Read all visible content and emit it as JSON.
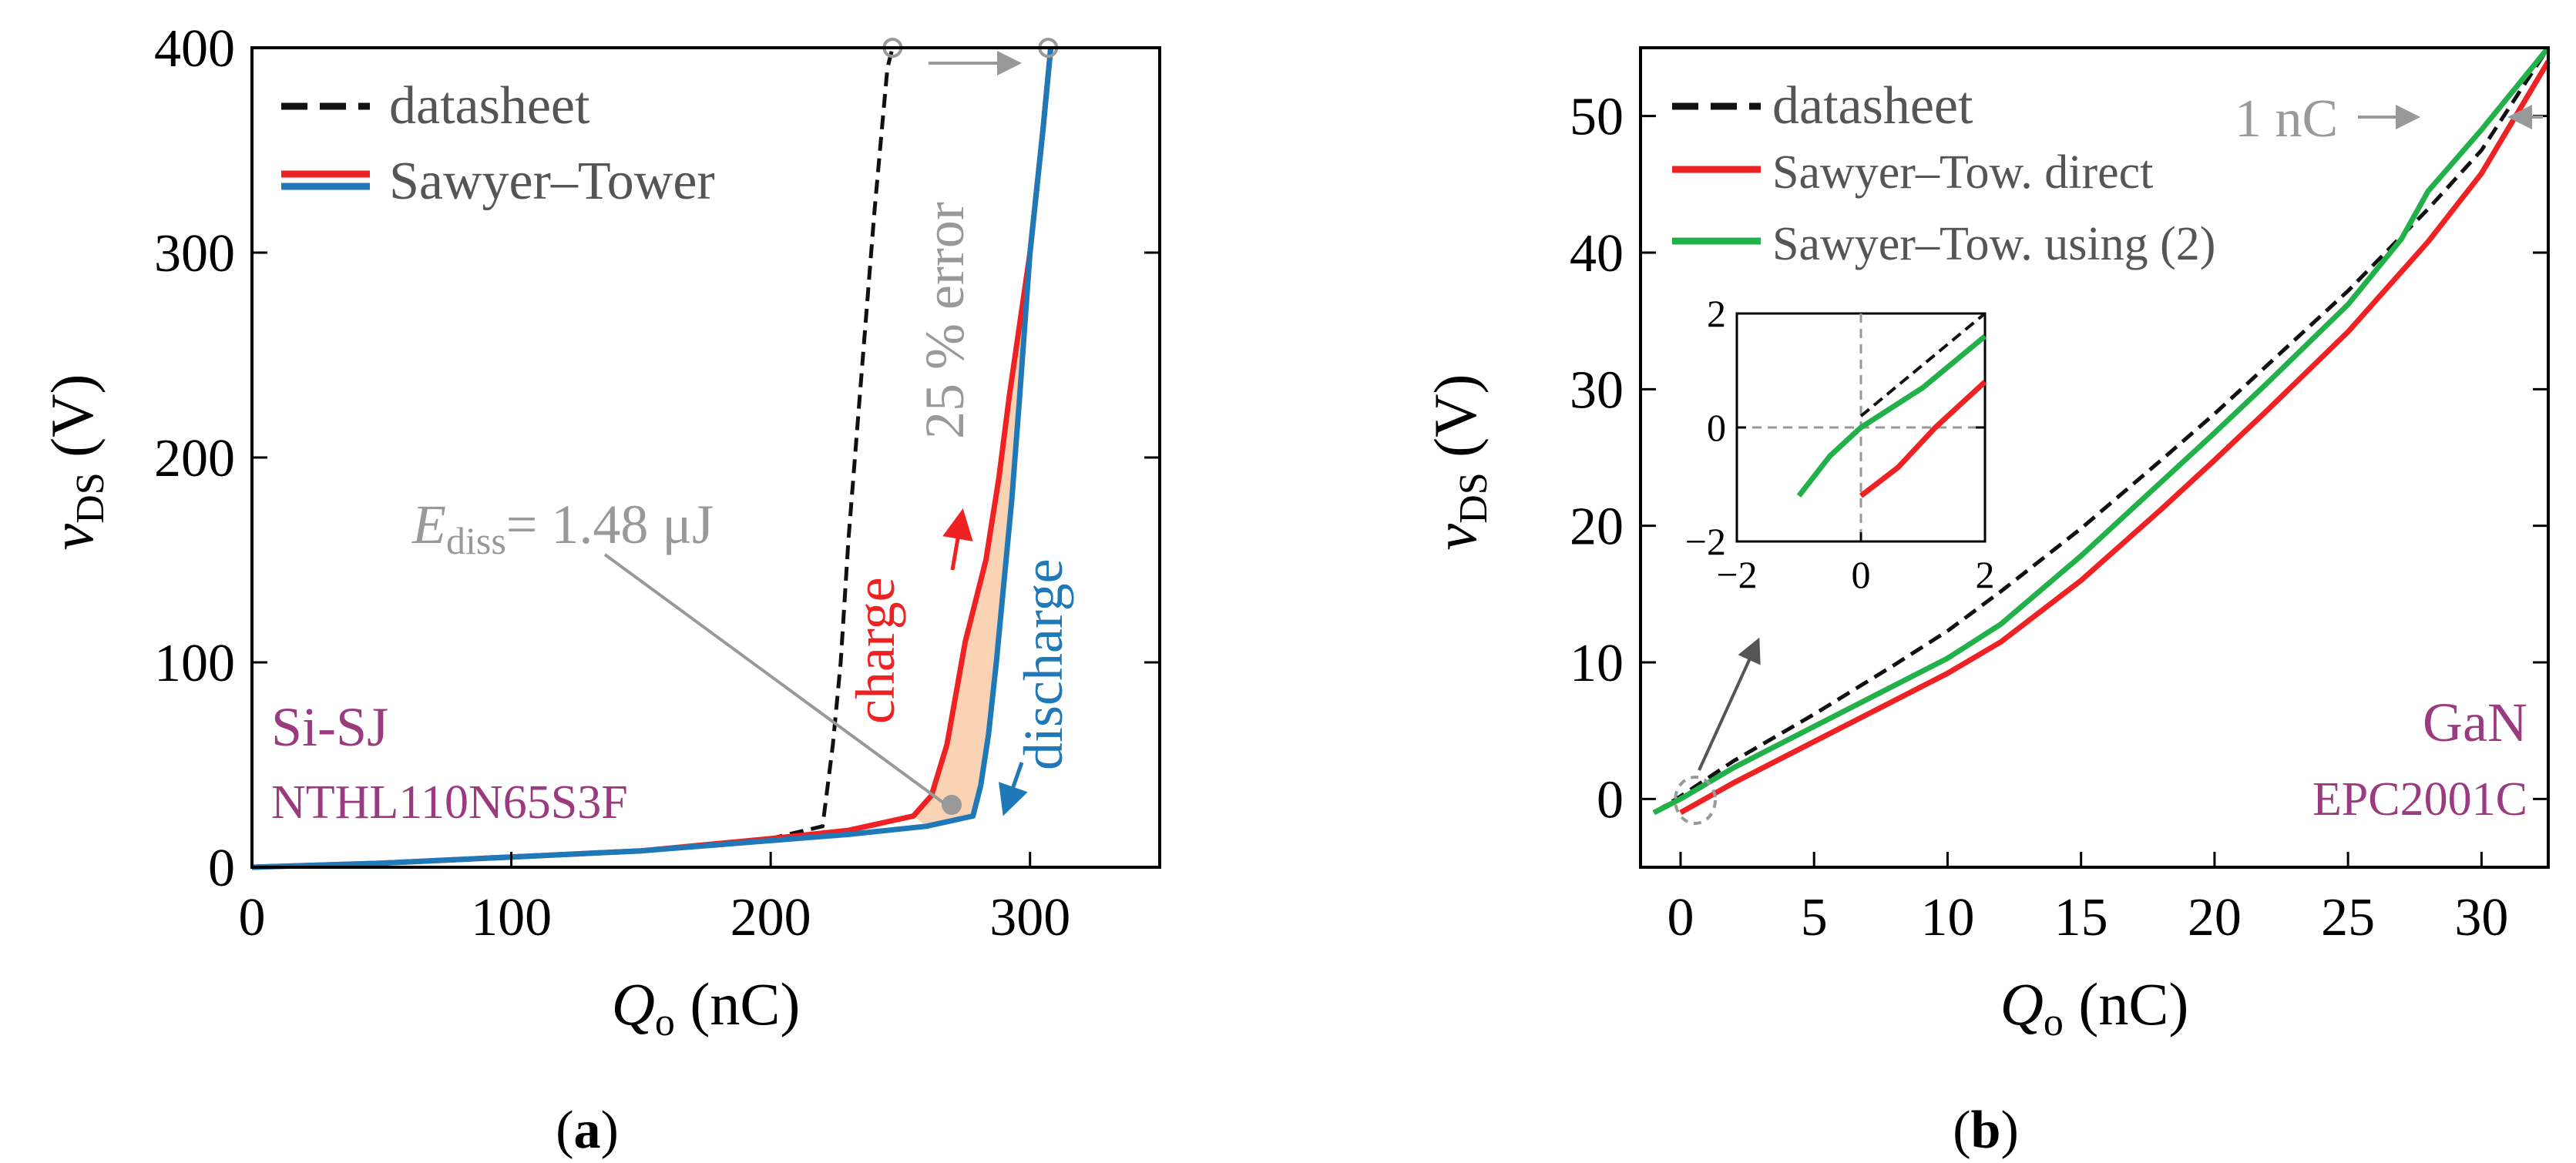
{
  "colors": {
    "datasheet": "#111111",
    "red": "#ee2222",
    "blue": "#1f78b8",
    "green": "#22b04a",
    "gray": "#999999",
    "purple": "#9b3b7f",
    "fill": "#f9d3b4"
  },
  "panels": {
    "a": {
      "label_open": "(",
      "label_letter": "a",
      "label_close": ")"
    },
    "b": {
      "label_open": "(",
      "label_letter": "b",
      "label_close": ")"
    }
  },
  "chart_data": [
    {
      "type": "line",
      "xlabel_main": "Q",
      "xlabel_sub": "o",
      "xlabel_unit": " (nC)",
      "ylabel_main": "v",
      "ylabel_sub": "DS",
      "ylabel_unit": " (V)",
      "xlim": [
        0,
        350
      ],
      "ylim": [
        0,
        400
      ],
      "xticks": [
        0,
        100,
        200,
        300
      ],
      "yticks": [
        0,
        100,
        200,
        300,
        400
      ],
      "xtick_labels": [
        "0",
        "100",
        "200",
        "300"
      ],
      "ytick_labels": [
        "0",
        "100",
        "200",
        "300",
        "400"
      ],
      "legend": {
        "datasheet": "datasheet",
        "sawyer_tower": "Sawyer–Tower",
        "placement": "top-left"
      },
      "series": [
        {
          "name": "datasheet",
          "style": "dashed",
          "x": [
            0,
            50,
            100,
            150,
            200,
            220,
            224,
            227,
            230,
            235,
            240,
            245,
            247
          ],
          "y": [
            0,
            2,
            5,
            8,
            14,
            20,
            60,
            100,
            160,
            240,
            320,
            390,
            400
          ]
        },
        {
          "name": "Sawyer–Tower charge",
          "style": "solid-red",
          "x": [
            0,
            50,
            100,
            150,
            200,
            230,
            255,
            262,
            268,
            275,
            283,
            288,
            292,
            300,
            305,
            308
          ],
          "y": [
            0,
            2,
            5,
            8,
            14,
            18,
            25,
            35,
            60,
            110,
            150,
            190,
            230,
            300,
            360,
            400
          ]
        },
        {
          "name": "Sawyer–Tower discharge",
          "style": "solid-blue",
          "x": [
            308,
            305,
            300,
            296,
            293,
            290,
            287,
            284,
            281,
            278,
            260,
            230,
            200,
            150,
            100,
            50,
            0
          ],
          "y": [
            400,
            360,
            300,
            230,
            180,
            140,
            100,
            65,
            40,
            25,
            20,
            16,
            13,
            8,
            5,
            2,
            0
          ]
        }
      ],
      "markers": [
        {
          "x": 247,
          "y": 400
        },
        {
          "x": 307,
          "y": 400
        }
      ],
      "annotations": {
        "error": "25 % error",
        "ediss_main": "E",
        "ediss_sub": "diss",
        "ediss_value": "= 1.48 μJ",
        "charge": "charge",
        "discharge": "discharge",
        "device_line1": "Si-SJ",
        "device_line2": "NTHL110N65S3F"
      }
    },
    {
      "type": "line",
      "xlabel_main": "Q",
      "xlabel_sub": "o",
      "xlabel_unit": " (nC)",
      "ylabel_main": "v",
      "ylabel_sub": "DS",
      "ylabel_unit": " (V)",
      "xlim": [
        -1.5,
        32.5
      ],
      "ylim": [
        -5,
        55
      ],
      "xticks": [
        0,
        5,
        10,
        15,
        20,
        25,
        30
      ],
      "yticks": [
        0,
        10,
        20,
        30,
        40,
        50
      ],
      "xtick_labels": [
        "0",
        "5",
        "10",
        "15",
        "20",
        "25",
        "30"
      ],
      "ytick_labels": [
        "0",
        "10",
        "20",
        "30",
        "40",
        "50"
      ],
      "legend": {
        "datasheet": "datasheet",
        "direct": "Sawyer–Tow. direct",
        "using2": "Sawyer–Tow. using (2)",
        "placement": "top-left"
      },
      "series": [
        {
          "name": "datasheet",
          "style": "dashed",
          "x": [
            -1,
            0,
            2,
            5,
            8,
            10,
            12,
            15,
            18,
            20,
            22,
            25,
            28,
            30,
            32.5
          ],
          "y": [
            -1,
            0.2,
            2.8,
            6.2,
            9.8,
            12.3,
            15.2,
            19.8,
            24.8,
            28.2,
            31.8,
            37.2,
            43.2,
            47.5,
            55
          ]
        },
        {
          "name": "Sawyer–Tow. direct",
          "style": "solid-red",
          "x": [
            0,
            2,
            5,
            8,
            10,
            12,
            15,
            18,
            20,
            22,
            25,
            28,
            30,
            32.5
          ],
          "y": [
            -1,
            1.2,
            4.2,
            7.2,
            9.2,
            11.5,
            16,
            21.2,
            24.8,
            28.5,
            34.2,
            40.8,
            45.8,
            54
          ]
        },
        {
          "name": "Sawyer–Tow. using (2)",
          "style": "solid-green",
          "x": [
            -1,
            0,
            2,
            5,
            8,
            10,
            12,
            15,
            18,
            20,
            22,
            25,
            27,
            28,
            30,
            32.5
          ],
          "y": [
            -1,
            0,
            2.3,
            5.3,
            8.3,
            10.3,
            12.8,
            17.8,
            23.2,
            26.8,
            30.5,
            36.2,
            41,
            44.5,
            49,
            55
          ]
        }
      ],
      "inset": {
        "xlim": [
          -2,
          2
        ],
        "ylim": [
          -2,
          2
        ],
        "xticks": [
          -2,
          0,
          2
        ],
        "yticks": [
          -2,
          0,
          2
        ],
        "xtick_labels": [
          "−2",
          "0",
          "2"
        ],
        "ytick_labels": [
          "−2",
          "0",
          "2"
        ],
        "series": [
          {
            "name": "datasheet",
            "style": "dashed",
            "x": [
              0,
              2
            ],
            "y": [
              0.2,
              2
            ]
          },
          {
            "name": "direct",
            "style": "solid-red",
            "x": [
              0,
              0.6,
              1.2,
              2
            ],
            "y": [
              -1.2,
              -0.7,
              0,
              0.8
            ]
          },
          {
            "name": "using2",
            "style": "solid-green",
            "x": [
              -1,
              -0.5,
              0,
              1,
              2
            ],
            "y": [
              -1.2,
              -0.5,
              0,
              0.7,
              1.6
            ]
          }
        ]
      },
      "annotations": {
        "one_nc": "1 nC",
        "device_line1": "GaN",
        "device_line2": "EPC2001C"
      }
    }
  ]
}
